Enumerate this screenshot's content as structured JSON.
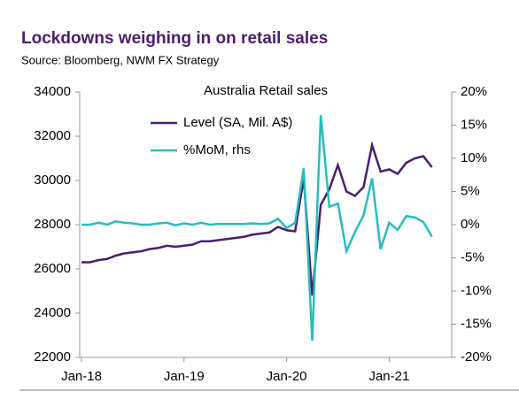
{
  "header": {
    "title": "Lockdowns weighing in on retail sales",
    "source": "Source:  Bloomberg, NWM FX Strategy"
  },
  "chart_data": {
    "type": "line",
    "title": "Australia Retail sales",
    "categories": [
      "Jan-18",
      null,
      null,
      null,
      null,
      null,
      null,
      null,
      null,
      null,
      null,
      null,
      "Jan-19",
      null,
      null,
      null,
      null,
      null,
      null,
      null,
      null,
      null,
      null,
      null,
      "Jan-20",
      null,
      null,
      null,
      null,
      null,
      null,
      null,
      null,
      null,
      null,
      null,
      "Jan-21",
      null,
      null,
      null,
      null,
      null
    ],
    "series": [
      {
        "name": "Level (SA, Mil. A$)",
        "color": "#4b1e6e",
        "axis": "y",
        "values": [
          26300,
          26300,
          26400,
          26450,
          26600,
          26700,
          26750,
          26800,
          26900,
          26950,
          27050,
          27000,
          27050,
          27100,
          27250,
          27250,
          27300,
          27350,
          27400,
          27450,
          27550,
          27600,
          27650,
          27900,
          27750,
          27700,
          30100,
          24800,
          28900,
          29600,
          30700,
          29500,
          29300,
          29700,
          31600,
          30400,
          30500,
          30300,
          30800,
          31000,
          31100,
          30600
        ]
      },
      {
        "name": "%MoM, rhs",
        "color": "#2bbcbc",
        "axis": "y2",
        "values": [
          0,
          0,
          0.3,
          0,
          0.5,
          0.3,
          0.2,
          0,
          0,
          0.2,
          0.3,
          -0.1,
          0.2,
          0,
          0.3,
          0,
          0.1,
          0.1,
          0.1,
          0.1,
          0.2,
          0.1,
          0.2,
          0.9,
          -0.5,
          0.3,
          8.5,
          -17.5,
          16.5,
          2.7,
          3.2,
          -4.0,
          -1.1,
          1.4,
          7.0,
          -3.7,
          0.3,
          -0.8,
          1.3,
          1.1,
          0.4,
          -1.8
        ]
      }
    ],
    "ylim": [
      22000,
      34000
    ],
    "yticks": [
      22000,
      24000,
      26000,
      28000,
      30000,
      32000,
      34000
    ],
    "y2lim": [
      -20,
      20
    ],
    "y2ticks": [
      {
        "value": -20,
        "label": "-20%"
      },
      {
        "value": -15,
        "label": "-15%"
      },
      {
        "value": -10,
        "label": "-10%"
      },
      {
        "value": -5,
        "label": "-5%"
      },
      {
        "value": 0,
        "label": "0%"
      },
      {
        "value": 5,
        "label": "5%"
      },
      {
        "value": 10,
        "label": "10%"
      },
      {
        "value": 15,
        "label": "15%"
      },
      {
        "value": 20,
        "label": "20%"
      }
    ]
  }
}
